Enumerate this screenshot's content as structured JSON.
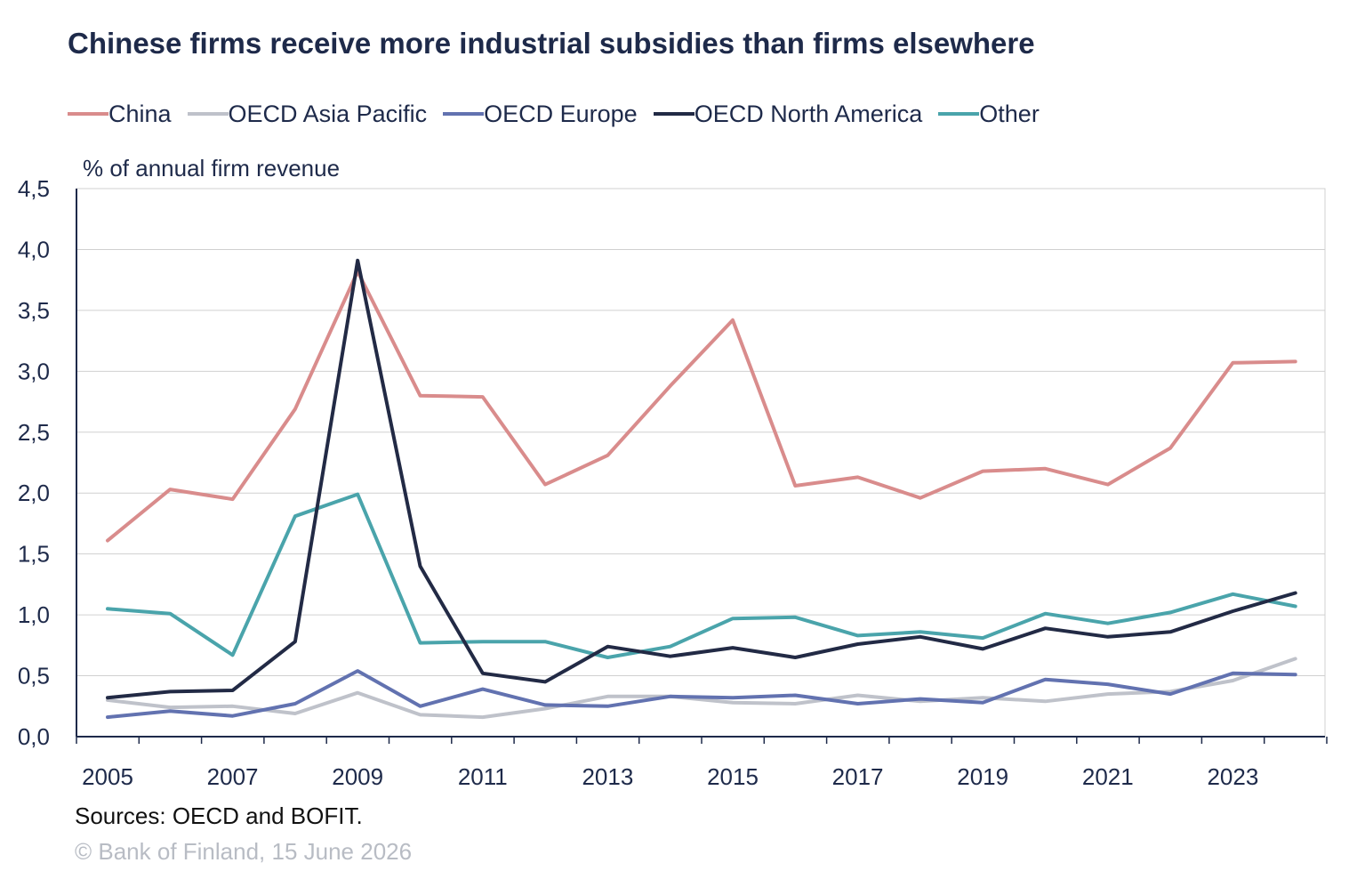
{
  "chart_data": {
    "type": "line",
    "title": "Chinese firms receive more industrial subsidies than firms elsewhere",
    "ylabel": "% of annual firm revenue",
    "xlabel": "",
    "x": [
      2005,
      2006,
      2007,
      2008,
      2009,
      2010,
      2011,
      2012,
      2013,
      2014,
      2015,
      2016,
      2017,
      2018,
      2019,
      2020,
      2021,
      2022,
      2023,
      2024
    ],
    "x_tick_labels": [
      "2005",
      "2007",
      "2009",
      "2011",
      "2013",
      "2015",
      "2017",
      "2019",
      "2021",
      "2023"
    ],
    "ylim": [
      0,
      4.5
    ],
    "y_ticks": [
      0,
      0.5,
      1.0,
      1.5,
      2.0,
      2.5,
      3.0,
      3.5,
      4.0,
      4.5
    ],
    "y_tick_labels": [
      "0,0",
      "0,5",
      "1,0",
      "1,5",
      "2,0",
      "2,5",
      "3,0",
      "3,5",
      "4,0",
      "4,5"
    ],
    "grid": true,
    "legend_position": "top-left",
    "series": [
      {
        "name": "China",
        "color": "#d98c8c",
        "values": [
          1.61,
          2.03,
          1.95,
          2.69,
          3.82,
          2.8,
          2.79,
          2.07,
          2.31,
          2.88,
          3.42,
          2.06,
          2.13,
          1.96,
          2.18,
          2.2,
          2.07,
          2.37,
          3.07,
          3.08
        ]
      },
      {
        "name": "OECD Asia Pacific",
        "color": "#bfc2ca",
        "values": [
          0.3,
          0.24,
          0.25,
          0.19,
          0.36,
          0.18,
          0.16,
          0.23,
          0.33,
          0.33,
          0.28,
          0.27,
          0.34,
          0.29,
          0.32,
          0.29,
          0.35,
          0.37,
          0.46,
          0.64
        ]
      },
      {
        "name": "OECD Europe",
        "color": "#6272b0",
        "values": [
          0.16,
          0.21,
          0.17,
          0.27,
          0.54,
          0.25,
          0.39,
          0.26,
          0.25,
          0.33,
          0.32,
          0.34,
          0.27,
          0.31,
          0.28,
          0.47,
          0.43,
          0.35,
          0.52,
          0.51
        ]
      },
      {
        "name": "OECD North America",
        "color": "#222a45",
        "values": [
          0.32,
          0.37,
          0.38,
          0.78,
          3.91,
          1.4,
          0.52,
          0.45,
          0.74,
          0.66,
          0.73,
          0.65,
          0.76,
          0.82,
          0.72,
          0.89,
          0.82,
          0.86,
          1.03,
          1.18
        ]
      },
      {
        "name": "Other",
        "color": "#4aa4ab",
        "values": [
          1.05,
          1.01,
          0.67,
          1.81,
          1.99,
          0.77,
          0.78,
          0.78,
          0.65,
          0.74,
          0.97,
          0.98,
          0.83,
          0.86,
          0.81,
          1.01,
          0.93,
          1.02,
          1.17,
          1.07
        ]
      }
    ]
  },
  "footer": {
    "source": "Sources: OECD and BOFIT.",
    "copyright": "© Bank of Finland, 15 June 2026"
  }
}
